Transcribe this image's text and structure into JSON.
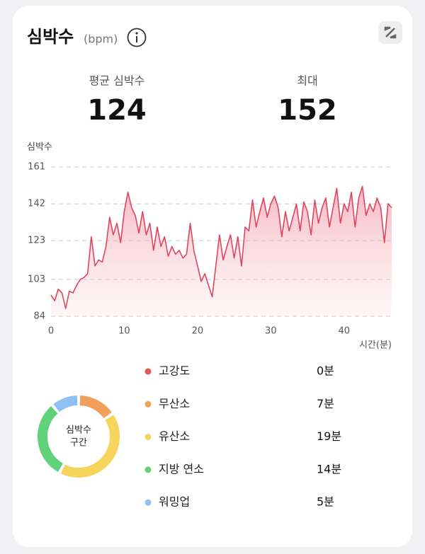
{
  "header": {
    "title": "심박수",
    "unit": "(bpm)"
  },
  "stats": [
    {
      "label": "평균 심박수",
      "value": 124
    },
    {
      "label": "최대",
      "value": 152
    }
  ],
  "chart_data": [
    {
      "type": "line",
      "y_label": "심박수",
      "x_label": "시간(분)",
      "color": "#e0455e",
      "x": [
        0,
        0.5,
        1,
        1.5,
        2,
        2.5,
        3,
        3.5,
        4,
        4.5,
        5,
        5.5,
        6,
        6.5,
        7,
        7.5,
        8,
        8.5,
        9,
        9.5,
        10,
        10.5,
        11,
        11.5,
        12,
        12.5,
        13,
        13.5,
        14,
        14.5,
        15,
        15.5,
        16,
        16.5,
        17,
        17.5,
        18,
        18.5,
        19,
        19.5,
        20,
        20.5,
        21,
        21.5,
        22,
        22.5,
        23,
        23.5,
        24,
        24.5,
        25,
        25.5,
        26,
        26.5,
        27,
        27.5,
        28,
        28.5,
        29,
        29.5,
        30,
        30.5,
        31,
        31.5,
        32,
        32.5,
        33,
        33.5,
        34,
        34.5,
        35,
        35.5,
        36,
        36.5,
        37,
        37.5,
        38,
        38.5,
        39,
        39.5,
        40,
        40.5,
        41,
        41.5,
        42,
        42.5,
        43,
        43.5,
        44,
        44.5,
        45,
        45.5,
        46,
        46.5
      ],
      "values": [
        95,
        92,
        98,
        96,
        88,
        97,
        96,
        100,
        103,
        104,
        106,
        125,
        110,
        113,
        112,
        120,
        135,
        126,
        132,
        122,
        138,
        148,
        140,
        136,
        127,
        138,
        126,
        132,
        118,
        130,
        120,
        125,
        115,
        120,
        116,
        118,
        114,
        116,
        132,
        118,
        110,
        102,
        106,
        100,
        94,
        110,
        126,
        113,
        120,
        126,
        114,
        125,
        110,
        130,
        128,
        144,
        130,
        138,
        145,
        135,
        142,
        146,
        140,
        125,
        138,
        128,
        135,
        142,
        128,
        143,
        138,
        126,
        144,
        132,
        140,
        145,
        130,
        140,
        150,
        132,
        142,
        138,
        148,
        130,
        145,
        151,
        136,
        142,
        138,
        145,
        140,
        122,
        142,
        140
      ],
      "xlim": [
        0,
        46.5
      ],
      "ylim": [
        84,
        161
      ],
      "xticks": [
        0,
        10,
        20,
        30,
        40
      ],
      "yticks": [
        84,
        103,
        123,
        142,
        161
      ],
      "grid": true
    },
    {
      "type": "pie",
      "center_label": [
        "심박수",
        "구간"
      ],
      "categories": [
        "고강도",
        "무산소",
        "유산소",
        "지방 연소",
        "워밍업"
      ],
      "values": [
        0,
        7,
        19,
        14,
        5
      ],
      "value_labels": [
        "0분",
        "7분",
        "19분",
        "14분",
        "5분"
      ],
      "colors": [
        "#e8594f",
        "#f0a05a",
        "#f7d55c",
        "#5fd27a",
        "#8ec0f5"
      ]
    }
  ]
}
